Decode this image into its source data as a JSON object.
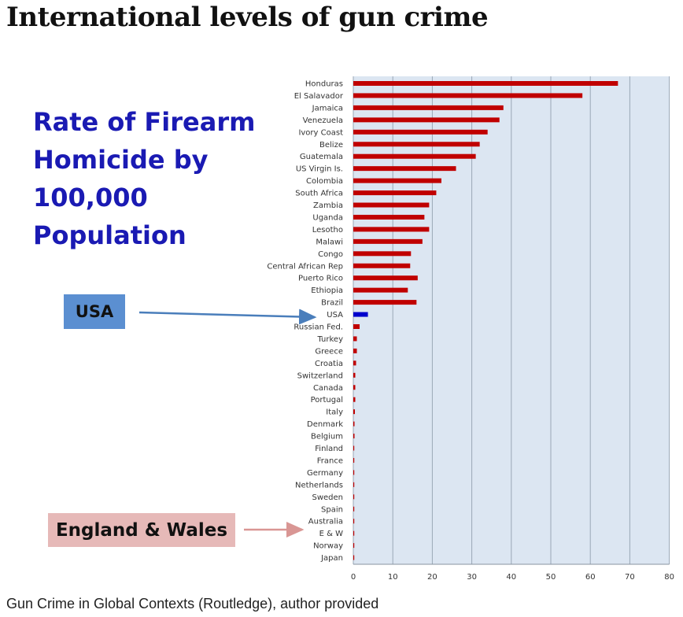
{
  "title": "International levels of gun crime",
  "slide_heading": [
    "Rate of Firearm",
    "Homicide by",
    "100,000",
    "Population"
  ],
  "callouts": {
    "usa": "USA",
    "england_wales": "England & Wales"
  },
  "caption": "Gun Crime in Global Contexts (Routledge), author provided",
  "colors": {
    "bar": "#c00000",
    "highlight_bar": "#0000cc",
    "plot_background": "#dce6f2",
    "heading_text": "#1a1ab3",
    "usa_callout": "#5b8fd1",
    "ew_callout": "#e6b9b8",
    "usa_arrow": "#4a7ebb",
    "ew_arrow": "#d99694"
  },
  "chart_data": {
    "type": "bar",
    "orientation": "horizontal",
    "categories": [
      "Honduras",
      "El Salavador",
      "Jamaica",
      "Venezuela",
      "Ivory Coast",
      "Belize",
      "Guatemala",
      "US Virgin Is.",
      "Colombia",
      "South Africa",
      "Zambia",
      "Uganda",
      "Lesotho",
      "Malawi",
      "Congo",
      "Central African Rep",
      "Puerto Rico",
      "Ethiopia",
      "Brazil",
      "USA",
      "Russian Fed.",
      "Turkey",
      "Greece",
      "Croatia",
      "Switzerland",
      "Canada",
      "Portugal",
      "Italy",
      "Denmark",
      "Belgium",
      "Finland",
      "France",
      "Germany",
      "Netherlands",
      "Sweden",
      "Spain",
      "Australia",
      "E & W",
      "Norway",
      "Japan"
    ],
    "values": [
      67,
      58,
      38,
      37,
      34,
      32,
      31,
      26,
      22.3,
      21,
      19.2,
      18,
      19.2,
      17.5,
      14.6,
      14.4,
      16.3,
      13.8,
      16,
      3.7,
      1.6,
      0.9,
      0.9,
      0.7,
      0.5,
      0.5,
      0.5,
      0.4,
      0.3,
      0.3,
      0.2,
      0.2,
      0.2,
      0.2,
      0.2,
      0.2,
      0.1,
      0.1,
      0.1,
      0.02
    ],
    "highlight": "USA",
    "xlim": [
      0,
      80
    ],
    "xticks": [
      0,
      10,
      20,
      30,
      40,
      50,
      60,
      70,
      80
    ],
    "grid": true,
    "title": "",
    "xlabel": "",
    "ylabel": ""
  }
}
